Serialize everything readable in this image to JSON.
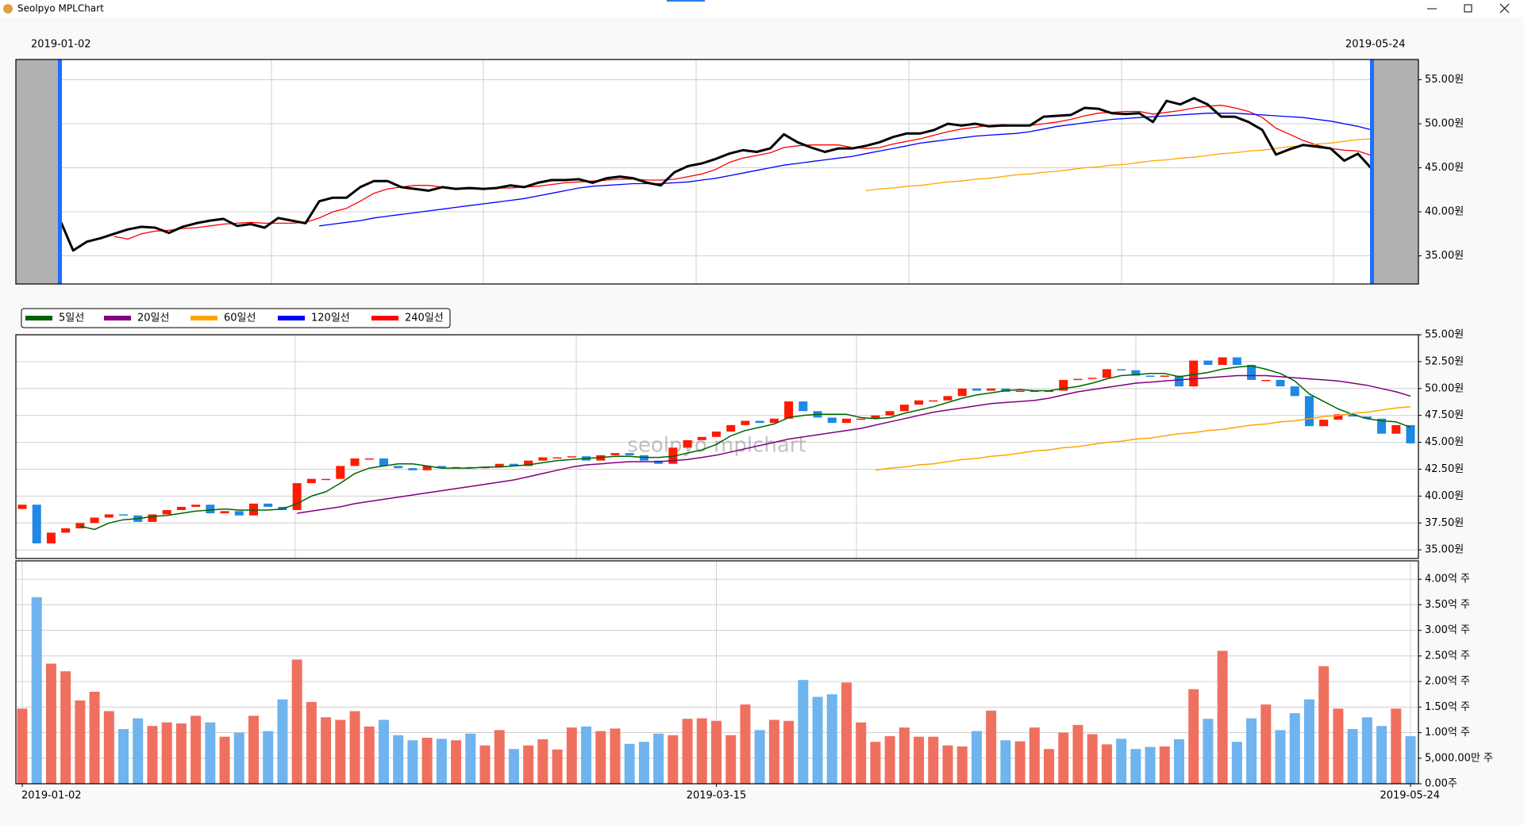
{
  "window": {
    "title": "Seolpyo MPLChart"
  },
  "chart_data": [
    {
      "type": "line",
      "x_labels": [
        "2019-01-02",
        "2019-05-24"
      ],
      "ylim": [
        31.8,
        57.3
      ],
      "yticks": [
        {
          "value": 35,
          "label": "35.00원"
        },
        {
          "value": 40,
          "label": "40.00원"
        },
        {
          "value": 45,
          "label": "45.00원"
        },
        {
          "value": 50,
          "label": "50.00원"
        },
        {
          "value": 55,
          "label": "55.00원"
        }
      ],
      "grid": true,
      "close_color": "#000000",
      "ma_colors": [
        "#ff0000",
        "#0000ff",
        "#ffa500"
      ],
      "shade_color": "#b0b0b0",
      "range_color": "#1e6fff"
    },
    {
      "type": "candlestick",
      "watermark": "seolpyo mplchart",
      "up_color": "#ff1a00",
      "down_color": "#1e88e5",
      "legend": "upper left",
      "grid": true,
      "ylim": [
        34.2,
        55
      ],
      "yticks": [
        {
          "value": 35,
          "label": "35.00원"
        },
        {
          "value": 37.5,
          "label": "37.50원"
        },
        {
          "value": 40,
          "label": "40.00원"
        },
        {
          "value": 42.5,
          "label": "42.50원"
        },
        {
          "value": 45,
          "label": "45.00원"
        },
        {
          "value": 47.5,
          "label": "47.50원"
        },
        {
          "value": 50,
          "label": "50.00원"
        },
        {
          "value": 52.5,
          "label": "52.50원"
        },
        {
          "value": 55,
          "label": "55.00원"
        }
      ],
      "open": [
        38.8,
        39.2,
        35.6,
        36.6,
        37.0,
        37.5,
        38.0,
        38.3,
        38.2,
        37.6,
        38.3,
        38.7,
        39.0,
        39.2,
        38.4,
        38.6,
        38.2,
        39.3,
        39.0,
        38.7,
        41.2,
        41.6,
        41.6,
        42.8,
        43.5,
        43.5,
        42.8,
        42.6,
        42.4,
        42.8,
        42.6,
        42.7,
        42.6,
        42.7,
        43.0,
        42.8,
        43.3,
        43.6,
        43.6,
        43.7,
        43.3,
        43.8,
        44.0,
        43.8,
        43.3,
        43.0,
        44.5,
        45.2,
        45.5,
        46.0,
        46.6,
        47.0,
        46.8,
        47.2,
        48.8,
        47.9,
        47.3,
        46.8,
        47.2,
        47.2,
        47.5,
        47.9,
        48.5,
        48.9,
        48.9,
        49.3,
        50.0,
        49.8,
        50.0,
        49.7,
        49.8,
        49.8,
        49.8,
        50.8,
        50.9,
        51.0,
        51.8,
        51.7,
        51.2,
        51.1,
        51.2,
        50.2,
        52.6,
        52.2,
        52.9,
        52.2,
        50.8,
        50.8,
        50.2,
        49.3,
        46.5,
        47.1,
        47.6,
        47.4,
        47.2,
        45.8,
        46.6
      ],
      "close": [
        39.2,
        35.6,
        36.6,
        37.0,
        37.5,
        38.0,
        38.3,
        38.2,
        37.6,
        38.3,
        38.7,
        39.0,
        39.2,
        38.4,
        38.6,
        38.2,
        39.3,
        39.0,
        38.7,
        41.2,
        41.6,
        41.6,
        42.8,
        43.5,
        43.5,
        42.8,
        42.6,
        42.4,
        42.8,
        42.6,
        42.7,
        42.6,
        42.7,
        43.0,
        42.8,
        43.3,
        43.6,
        43.6,
        43.7,
        43.3,
        43.8,
        44.0,
        43.8,
        43.3,
        43.0,
        44.5,
        45.2,
        45.5,
        46.0,
        46.6,
        47.0,
        46.8,
        47.2,
        48.8,
        47.9,
        47.3,
        46.8,
        47.2,
        47.2,
        47.5,
        47.9,
        48.5,
        48.9,
        48.9,
        49.3,
        50.0,
        49.8,
        50.0,
        49.7,
        49.8,
        49.8,
        49.8,
        50.8,
        50.9,
        51.0,
        51.8,
        51.7,
        51.2,
        51.1,
        51.2,
        50.2,
        52.6,
        52.2,
        52.9,
        52.2,
        50.8,
        50.8,
        50.2,
        49.3,
        46.5,
        47.1,
        47.6,
        47.4,
        47.2,
        45.8,
        46.6,
        44.9
      ],
      "series": [
        {
          "name": "5일선",
          "color": "#006400",
          "values": [
            null,
            null,
            null,
            null,
            37.2,
            36.9,
            37.5,
            37.8,
            37.9,
            38.1,
            38.2,
            38.4,
            38.6,
            38.7,
            38.8,
            38.7,
            38.7,
            38.7,
            38.8,
            39.3,
            40.0,
            40.4,
            41.2,
            42.1,
            42.6,
            42.8,
            43.0,
            43.0,
            42.8,
            42.6,
            42.6,
            42.6,
            42.7,
            42.7,
            42.8,
            42.9,
            43.1,
            43.3,
            43.4,
            43.5,
            43.6,
            43.7,
            43.7,
            43.6,
            43.6,
            43.7,
            44.0,
            44.3,
            44.8,
            45.6,
            46.1,
            46.4,
            46.7,
            47.3,
            47.5,
            47.6,
            47.6,
            47.6,
            47.3,
            47.2,
            47.3,
            47.7,
            48.0,
            48.3,
            48.7,
            49.1,
            49.4,
            49.6,
            49.8,
            49.9,
            49.8,
            49.8,
            50.0,
            50.2,
            50.5,
            50.9,
            51.2,
            51.3,
            51.4,
            51.4,
            51.1,
            51.3,
            51.5,
            51.8,
            52.0,
            52.1,
            51.8,
            51.4,
            50.7,
            49.5,
            48.8,
            48.1,
            47.6,
            47.2,
            47.0,
            46.9,
            46.4
          ]
        },
        {
          "name": "20일선",
          "color": "#800080",
          "values": [
            null,
            null,
            null,
            null,
            null,
            null,
            null,
            null,
            null,
            null,
            null,
            null,
            null,
            null,
            null,
            null,
            null,
            null,
            null,
            38.4,
            38.6,
            38.8,
            39.0,
            39.3,
            39.5,
            39.7,
            39.9,
            40.1,
            40.3,
            40.5,
            40.7,
            40.9,
            41.1,
            41.3,
            41.5,
            41.8,
            42.1,
            42.4,
            42.7,
            42.9,
            43.0,
            43.1,
            43.2,
            43.2,
            43.2,
            43.3,
            43.4,
            43.6,
            43.8,
            44.1,
            44.4,
            44.7,
            45.0,
            45.3,
            45.5,
            45.7,
            45.9,
            46.1,
            46.3,
            46.6,
            46.9,
            47.2,
            47.5,
            47.8,
            48.0,
            48.2,
            48.4,
            48.6,
            48.7,
            48.8,
            48.9,
            49.1,
            49.4,
            49.7,
            49.9,
            50.1,
            50.3,
            50.5,
            50.6,
            50.7,
            50.8,
            50.9,
            51.0,
            51.1,
            51.2,
            51.2,
            51.2,
            51.1,
            51.0,
            50.9,
            50.8,
            50.7,
            50.5,
            50.3,
            50.0,
            49.7,
            49.3
          ]
        },
        {
          "name": "60일선",
          "color": "#ffa500",
          "values": [
            null,
            null,
            null,
            null,
            null,
            null,
            null,
            null,
            null,
            null,
            null,
            null,
            null,
            null,
            null,
            null,
            null,
            null,
            null,
            null,
            null,
            null,
            null,
            null,
            null,
            null,
            null,
            null,
            null,
            null,
            null,
            null,
            null,
            null,
            null,
            null,
            null,
            null,
            null,
            null,
            null,
            null,
            null,
            null,
            null,
            null,
            null,
            null,
            null,
            null,
            null,
            null,
            null,
            null,
            null,
            null,
            null,
            null,
            null,
            42.4,
            42.6,
            42.7,
            42.9,
            43.0,
            43.2,
            43.4,
            43.5,
            43.7,
            43.8,
            44.0,
            44.2,
            44.3,
            44.5,
            44.6,
            44.8,
            45.0,
            45.1,
            45.3,
            45.4,
            45.6,
            45.8,
            45.9,
            46.1,
            46.2,
            46.4,
            46.6,
            46.7,
            46.9,
            47.0,
            47.2,
            47.4,
            47.5,
            47.7,
            47.8,
            48.0,
            48.2,
            48.3
          ]
        },
        {
          "name": "120일선",
          "color": "#0000ff",
          "values": [
            null,
            null,
            null,
            null,
            null,
            null,
            null,
            null,
            null,
            null,
            null,
            null,
            null,
            null,
            null,
            null,
            null,
            null,
            null,
            null,
            null,
            null,
            null,
            null,
            null,
            null,
            null,
            null,
            null,
            null,
            null,
            null,
            null,
            null,
            null,
            null,
            null,
            null,
            null,
            null,
            null,
            null,
            null,
            null,
            null,
            null,
            null,
            null,
            null,
            null,
            null,
            null,
            null,
            null,
            null,
            null,
            null,
            null,
            null,
            null,
            null,
            null,
            null,
            null,
            null,
            null,
            null,
            null,
            null,
            null,
            null,
            null,
            null,
            null,
            null,
            null,
            null,
            null,
            null,
            null,
            null,
            null,
            null,
            null,
            null,
            null,
            null,
            null,
            null,
            null,
            null,
            null,
            null,
            null,
            null,
            null,
            null
          ]
        },
        {
          "name": "240일선",
          "color": "#ff0000",
          "values": [
            null,
            null,
            null,
            null,
            null,
            null,
            null,
            null,
            null,
            null,
            null,
            null,
            null,
            null,
            null,
            null,
            null,
            null,
            null,
            null,
            null,
            null,
            null,
            null,
            null,
            null,
            null,
            null,
            null,
            null,
            null,
            null,
            null,
            null,
            null,
            null,
            null,
            null,
            null,
            null,
            null,
            null,
            null,
            null,
            null,
            null,
            null,
            null,
            null,
            null,
            null,
            null,
            null,
            null,
            null,
            null,
            null,
            null,
            null,
            null,
            null,
            null,
            null,
            null,
            null,
            null,
            null,
            null,
            null,
            null,
            null,
            null,
            null,
            null,
            null,
            null,
            null,
            null,
            null,
            null,
            null,
            null,
            null,
            null,
            null,
            null,
            null,
            null,
            null,
            null,
            null,
            null,
            null,
            null,
            null,
            null,
            null
          ]
        }
      ]
    },
    {
      "type": "bar",
      "up_color": "#f07060",
      "down_color": "#6fb4ee",
      "grid": true,
      "categories": [
        "2019-01-02",
        null,
        null,
        null,
        null,
        null,
        null,
        null,
        null,
        null,
        null,
        null,
        null,
        null,
        null,
        null,
        null,
        null,
        null,
        null,
        null,
        null,
        null,
        null,
        null,
        null,
        null,
        null,
        null,
        null,
        null,
        null,
        null,
        null,
        null,
        null,
        null,
        null,
        null,
        null,
        null,
        null,
        null,
        null,
        null,
        null,
        null,
        null,
        "2019-03-15",
        null,
        null,
        null,
        null,
        null,
        null,
        null,
        null,
        null,
        null,
        null,
        null,
        null,
        null,
        null,
        null,
        null,
        null,
        null,
        null,
        null,
        null,
        null,
        null,
        null,
        null,
        null,
        null,
        null,
        null,
        null,
        null,
        null,
        null,
        null,
        null,
        null,
        null,
        null,
        null,
        null,
        null,
        null,
        null,
        null,
        null,
        null,
        "2019-05-24"
      ],
      "values": [
        1.47,
        3.65,
        2.35,
        2.2,
        1.63,
        1.8,
        1.42,
        1.07,
        1.28,
        1.13,
        1.2,
        1.18,
        1.33,
        1.2,
        0.92,
        1.0,
        1.33,
        1.03,
        1.65,
        2.43,
        1.6,
        1.3,
        1.25,
        1.42,
        1.12,
        1.25,
        0.95,
        0.85,
        0.9,
        0.88,
        0.85,
        0.98,
        0.75,
        1.05,
        0.68,
        0.75,
        0.87,
        0.67,
        1.1,
        1.12,
        1.03,
        1.08,
        0.78,
        0.82,
        0.98,
        0.95,
        1.27,
        1.28,
        1.23,
        0.95,
        1.55,
        1.05,
        1.25,
        1.23,
        2.03,
        1.7,
        1.75,
        1.98,
        1.2,
        0.82,
        0.93,
        1.1,
        0.92,
        0.92,
        0.75,
        0.73,
        1.03,
        1.43,
        0.85,
        0.83,
        1.1,
        0.68,
        1.0,
        1.15,
        0.97,
        0.77,
        0.88,
        0.68,
        0.72,
        0.73,
        0.87,
        1.85,
        1.27,
        2.6,
        0.82,
        1.28,
        1.55,
        1.05,
        1.38,
        1.65,
        2.3,
        1.47,
        1.07,
        1.3,
        1.13,
        1.47,
        0.93
      ],
      "ylim": [
        0,
        4.36
      ],
      "yticks": [
        {
          "value": 0,
          "label": "0.00주"
        },
        {
          "value": 0.5,
          "label": "5,000.00만 주"
        },
        {
          "value": 1,
          "label": "1.00억 주"
        },
        {
          "value": 1.5,
          "label": "1.50억 주"
        },
        {
          "value": 2,
          "label": "2.00억 주"
        },
        {
          "value": 2.5,
          "label": "2.50억 주"
        },
        {
          "value": 3,
          "label": "3.00억 주"
        },
        {
          "value": 3.5,
          "label": "3.50억 주"
        },
        {
          "value": 4,
          "label": "4.00억 주"
        }
      ]
    }
  ]
}
